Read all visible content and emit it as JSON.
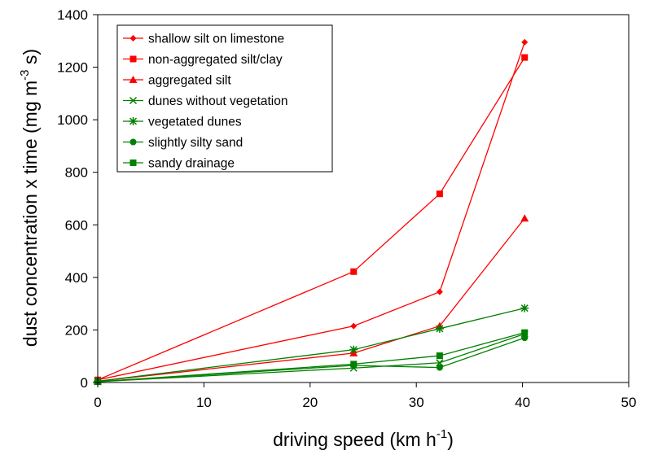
{
  "chart_data": {
    "type": "line",
    "xlabel": "driving speed (km h",
    "xlabel_sup": "-1",
    "xlabel_tail": ")",
    "ylabel": "dust concentration x time (mg m",
    "ylabel_sup": "-3",
    "ylabel_tail": " s)",
    "xlim": [
      0,
      50
    ],
    "ylim": [
      0,
      1400
    ],
    "x_ticks": [
      0,
      10,
      20,
      30,
      40,
      50
    ],
    "y_ticks": [
      0,
      200,
      400,
      600,
      800,
      1000,
      1200,
      1400
    ],
    "grid": false,
    "legend_position": "top-left",
    "series": [
      {
        "name": "shallow silt on limestone",
        "color": "#ff0000",
        "marker": "diamond",
        "points": [
          [
            0,
            10
          ],
          [
            24.1,
            215
          ],
          [
            32.2,
            345
          ],
          [
            40.2,
            1295
          ]
        ]
      },
      {
        "name": "non-aggregated silt/clay",
        "color": "#ff0000",
        "marker": "square",
        "points": [
          [
            0,
            10
          ],
          [
            24.1,
            422
          ],
          [
            32.2,
            718
          ],
          [
            40.2,
            1237
          ]
        ]
      },
      {
        "name": "aggregated silt",
        "color": "#ff0000",
        "marker": "triangle",
        "points": [
          [
            0,
            5
          ],
          [
            24.1,
            112
          ],
          [
            32.2,
            215
          ],
          [
            40.2,
            625
          ]
        ]
      },
      {
        "name": "dunes without vegetation",
        "color": "#008000",
        "marker": "x",
        "points": [
          [
            0,
            3
          ],
          [
            24.1,
            55
          ],
          [
            32.2,
            75
          ],
          [
            40.2,
            185
          ]
        ]
      },
      {
        "name": "vegetated dunes",
        "color": "#008000",
        "marker": "asterisk",
        "points": [
          [
            0,
            5
          ],
          [
            24.1,
            125
          ],
          [
            32.2,
            205
          ],
          [
            40.2,
            283
          ]
        ]
      },
      {
        "name": "slightly silty sand",
        "color": "#008000",
        "marker": "circle",
        "points": [
          [
            0,
            3
          ],
          [
            24.1,
            65
          ],
          [
            32.2,
            57
          ],
          [
            40.2,
            170
          ]
        ]
      },
      {
        "name": "sandy drainage",
        "color": "#008000",
        "marker": "square",
        "points": [
          [
            0,
            3
          ],
          [
            24.1,
            70
          ],
          [
            32.2,
            102
          ],
          [
            40.2,
            190
          ]
        ]
      }
    ]
  }
}
